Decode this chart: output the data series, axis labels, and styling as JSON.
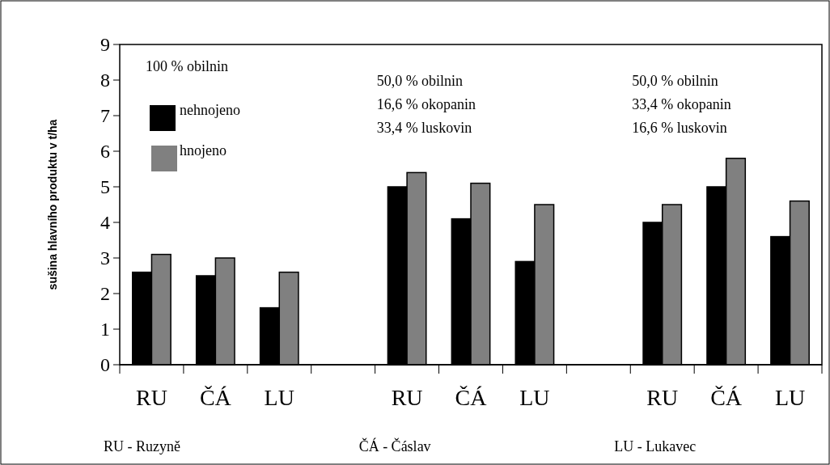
{
  "chart_data": {
    "type": "bar",
    "ylabel": "sušina hlavního produktu v t/ha",
    "categories": [
      "RU",
      "ČÁ",
      "LU",
      null,
      "RU",
      "ČÁ",
      "LU",
      null,
      "RU",
      "ČÁ",
      "LU"
    ],
    "series": [
      {
        "name": "nehnojeno",
        "color": "#000000",
        "values": [
          2.6,
          2.5,
          1.6,
          null,
          5.0,
          4.1,
          2.9,
          null,
          4.0,
          5.0,
          3.6
        ]
      },
      {
        "name": "hnojeno",
        "color": "#808080",
        "values": [
          3.1,
          3.0,
          2.6,
          null,
          5.4,
          5.1,
          4.5,
          null,
          4.5,
          5.8,
          4.6
        ]
      }
    ],
    "ylim": [
      0,
      9
    ],
    "yticks": [
      0,
      1,
      2,
      3,
      4,
      5,
      6,
      7,
      8,
      9
    ],
    "grid": false,
    "legend": "top left",
    "annotations": [
      "100 % obilnin",
      "50,0 % obilnin\n16,6 % okopanin\n33,4 % luskovin",
      "50,0 % obilnin\n33,4 % okopanin\n16,6 % luskovin",
      "RU - Ruzyně",
      "ČÁ - Čáslav",
      "LU - Lukavec"
    ]
  }
}
